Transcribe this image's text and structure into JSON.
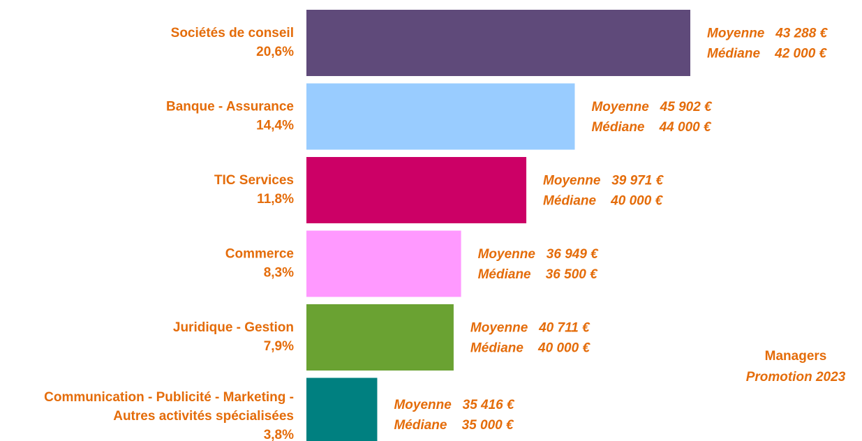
{
  "chart_data": {
    "type": "bar",
    "orientation": "horizontal",
    "categories": [
      [
        "Sociétés de conseil"
      ],
      [
        "Banque - Assurance"
      ],
      [
        "TIC Services"
      ],
      [
        "Commerce"
      ],
      [
        "Juridique - Gestion"
      ],
      [
        "Communication - Publicité - Marketing -",
        "Autres activités spécialisées"
      ]
    ],
    "values": [
      20.6,
      14.4,
      11.8,
      8.3,
      7.9,
      3.8
    ],
    "value_labels": [
      "20,6%",
      "14,4%",
      "11,8%",
      "8,3%",
      "7,9%",
      "3,8%"
    ],
    "colors": [
      "#5f4a7a",
      "#99ccff",
      "#cc0066",
      "#ff99ff",
      "#6aa232",
      "#008080"
    ],
    "annotations": [
      [
        "Moyenne   43 288 €",
        "Médiane    42 000 €"
      ],
      [
        "Moyenne   45 902 €",
        "Médiane    44 000 €"
      ],
      [
        "Moyenne   39 971 €",
        "Médiane    40 000 €"
      ],
      [
        "Moyenne   36 949 €",
        "Médiane    36 500 €"
      ],
      [
        "Moyenne   40 711 €",
        "Médiane    40 000 €"
      ],
      [
        "Moyenne   35 416 €",
        "Médiane    35 000 €"
      ]
    ],
    "legend": [
      "Managers",
      "Promotion 2023"
    ]
  }
}
